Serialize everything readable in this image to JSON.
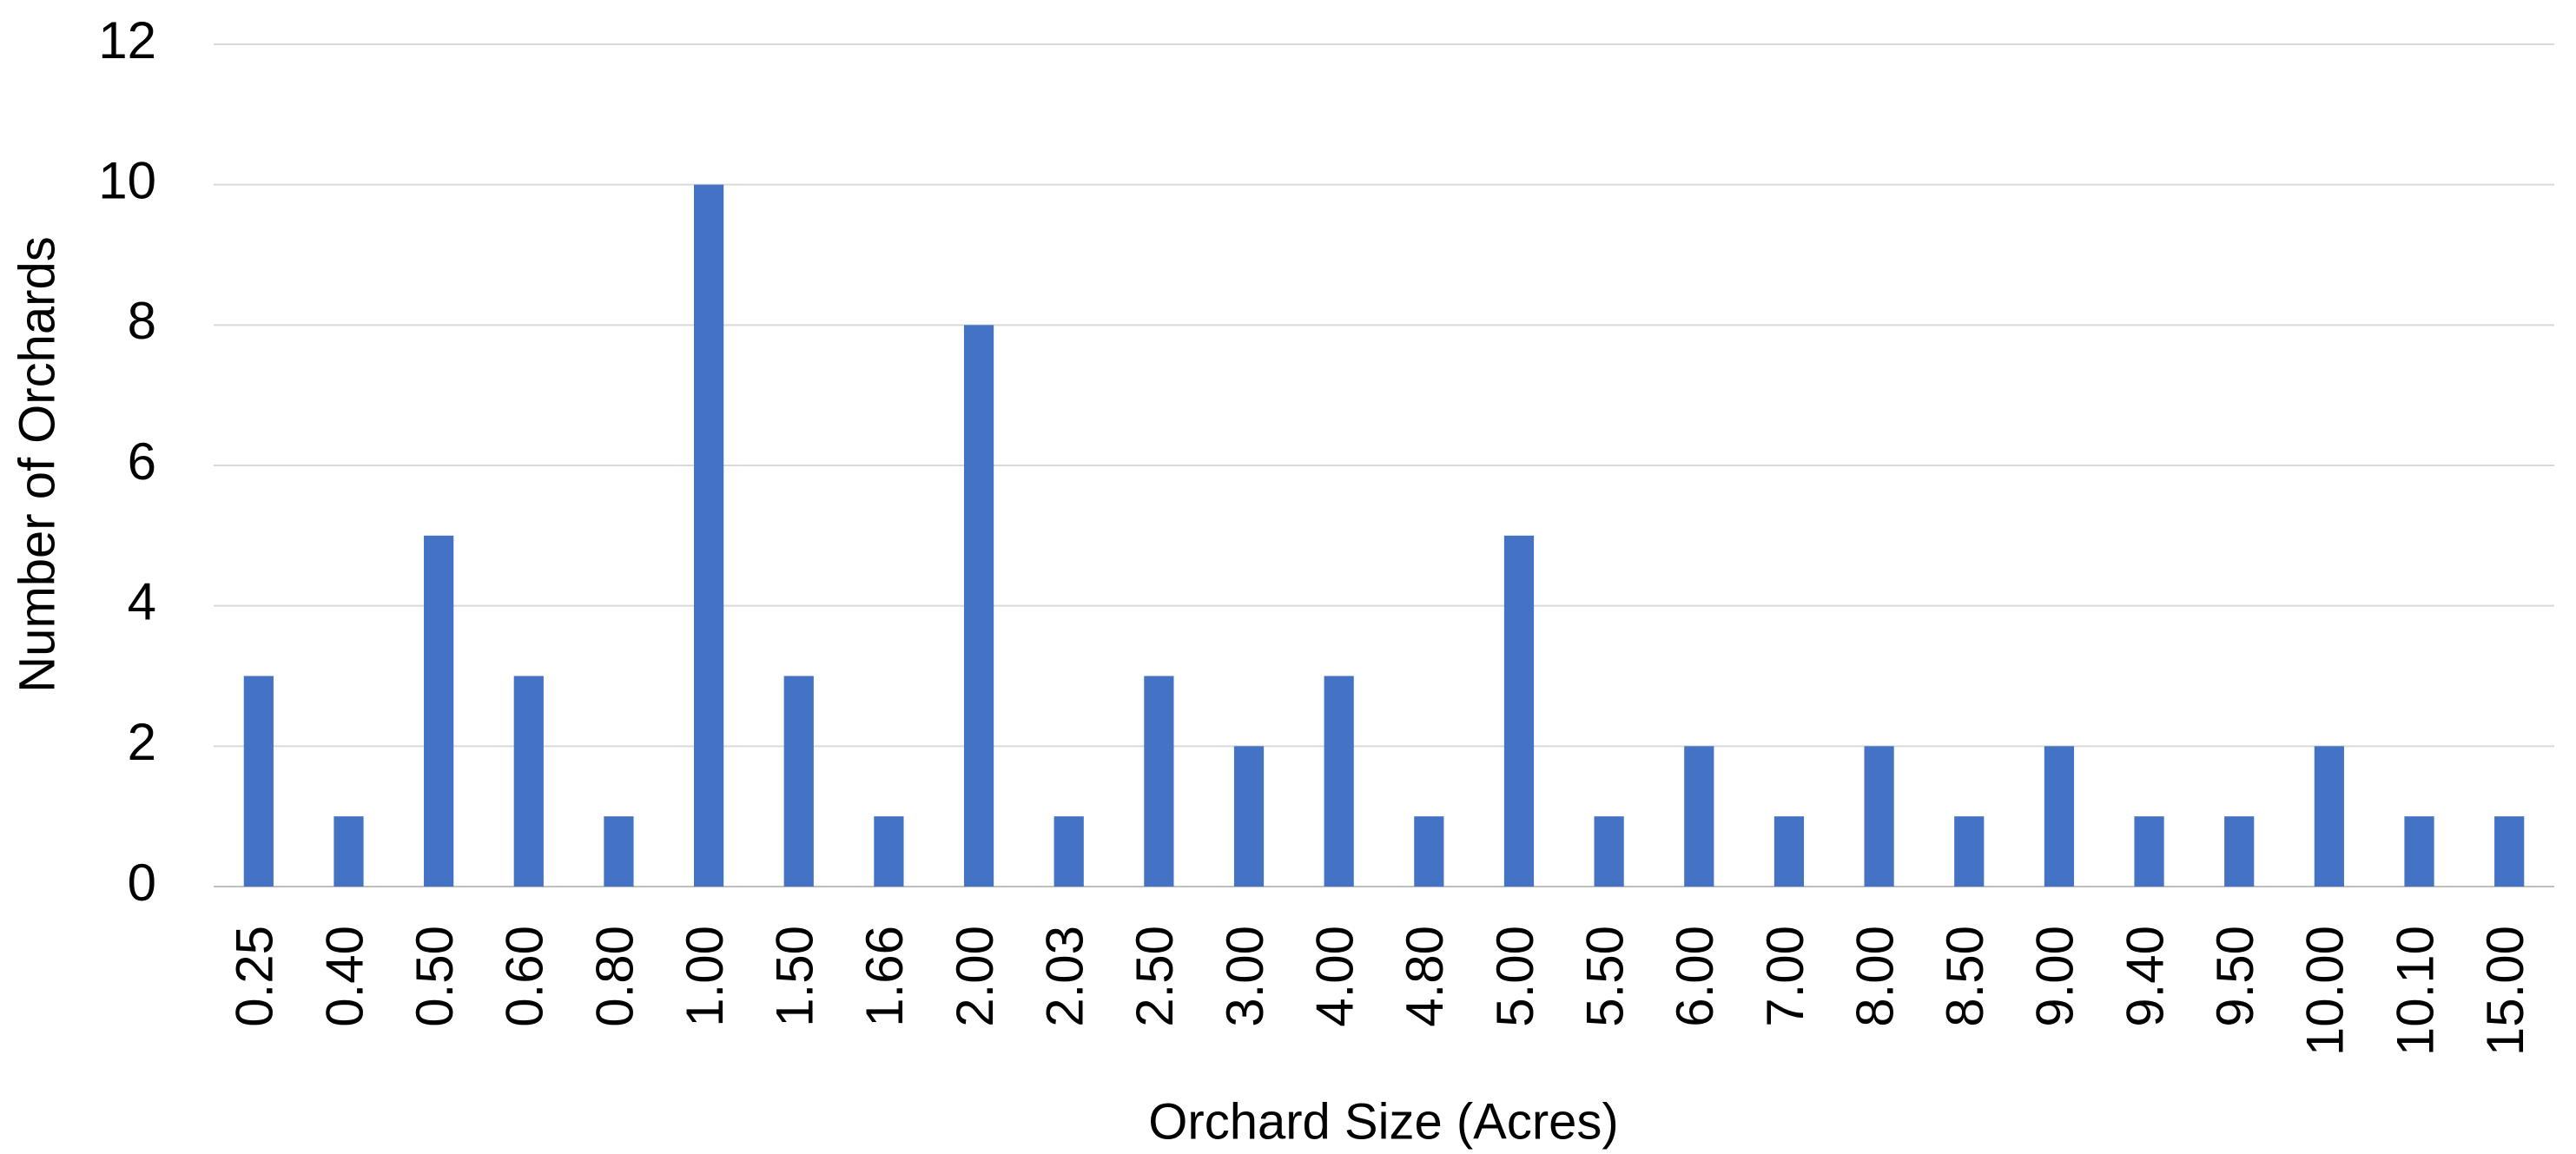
{
  "chart_data": {
    "type": "bar",
    "x_label": "Orchard Size (Acres)",
    "y_label": "Number of Orchards",
    "categories": [
      "0.25",
      "0.40",
      "0.50",
      "0.60",
      "0.80",
      "1.00",
      "1.50",
      "1.66",
      "2.00",
      "2.03",
      "2.50",
      "3.00",
      "4.00",
      "4.80",
      "5.00",
      "5.50",
      "6.00",
      "7.00",
      "8.00",
      "8.50",
      "9.00",
      "9.40",
      "9.50",
      "10.00",
      "10.10",
      "15.00"
    ],
    "values": [
      3,
      1,
      5,
      3,
      1,
      10,
      3,
      1,
      8,
      1,
      3,
      2,
      3,
      1,
      5,
      1,
      2,
      1,
      2,
      1,
      2,
      1,
      1,
      2,
      1,
      1
    ],
    "color": "#4472c4",
    "ylim": [
      0,
      12
    ],
    "yticks": [
      0,
      2,
      4,
      6,
      8,
      10,
      12
    ],
    "grid": true
  }
}
